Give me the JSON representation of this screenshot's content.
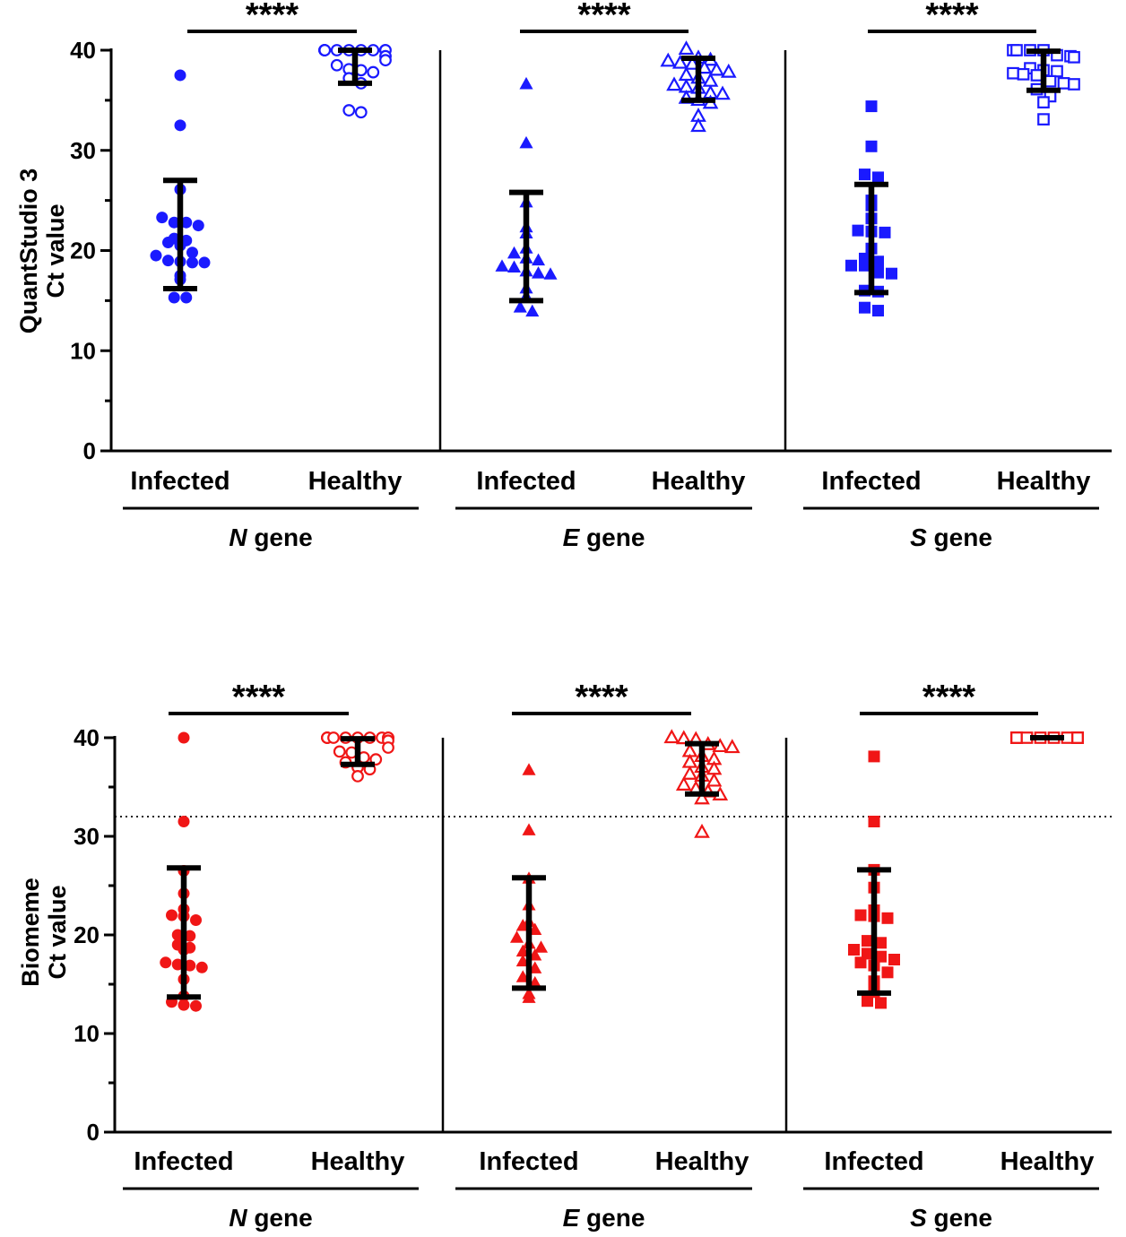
{
  "colors": {
    "panel_top": "#1a1aff",
    "panel_bottom": "#f01616",
    "errorbar": "#000000"
  },
  "chart_data": [
    {
      "type": "scatter",
      "ylabel_lines": [
        "QuantStudio 3",
        "Ct value"
      ],
      "ylim": [
        0,
        40
      ],
      "yticks": [
        "0",
        "10",
        "20",
        "30",
        "40"
      ],
      "threshold": null,
      "color": "#1a1aff",
      "panels": [
        {
          "gene": "N",
          "gene_suffix": " gene",
          "marker": "circle",
          "significance": "****",
          "groups": [
            {
              "label": "Infected",
              "filled": true,
              "mean": 21.5,
              "sd_low": 16.2,
              "sd_high": 27.0,
              "values": [
                37.5,
                32.5,
                26.1,
                23.3,
                22.8,
                22.5,
                22.8,
                21.2,
                21.0,
                20.5,
                20.8,
                19.8,
                19.5,
                19.0,
                18.9,
                18.8,
                18.8,
                17.5,
                17.1,
                15.3,
                15.3
              ]
            },
            {
              "label": "Healthy",
              "filled": false,
              "mean": 38.3,
              "sd_low": 36.7,
              "sd_high": 40.0,
              "values": [
                40,
                40,
                40,
                40,
                40,
                40,
                40,
                40,
                40,
                40,
                39.4,
                39.0,
                38.5,
                38.1,
                38.0,
                37.8,
                37.2,
                36.7,
                34.0,
                33.8
              ]
            }
          ]
        },
        {
          "gene": "E",
          "gene_suffix": " gene",
          "marker": "triangle",
          "significance": "****",
          "groups": [
            {
              "label": "Infected",
              "filled": true,
              "mean": 20.4,
              "sd_low": 15.0,
              "sd_high": 25.8,
              "values": [
                36.6,
                30.7,
                24.8,
                22.3,
                21.7,
                20.2,
                19.7,
                19.2,
                19.0,
                18.4,
                18.3,
                17.9,
                17.7,
                17.6,
                16.2,
                15.4,
                14.3,
                13.9
              ]
            },
            {
              "label": "Healthy",
              "filled": false,
              "mean": 37.0,
              "sd_low": 35.0,
              "sd_high": 39.2,
              "values": [
                40.1,
                39.2,
                39.0,
                38.9,
                38.7,
                38.6,
                38.2,
                38.0,
                37.8,
                37.5,
                37.2,
                36.9,
                36.5,
                36.3,
                36.2,
                35.7,
                35.6,
                35.2,
                35.0,
                34.7,
                33.4,
                32.4
              ]
            }
          ]
        },
        {
          "gene": "S",
          "gene_suffix": " gene",
          "marker": "square",
          "significance": "****",
          "groups": [
            {
              "label": "Infected",
              "filled": true,
              "mean": 21.1,
              "sd_low": 15.8,
              "sd_high": 26.6,
              "values": [
                34.4,
                30.4,
                27.6,
                27.3,
                25.0,
                24.5,
                23.2,
                22.0,
                21.9,
                21.8,
                20.2,
                19.2,
                18.9,
                18.5,
                18.5,
                17.8,
                17.7,
                16.0,
                15.9,
                14.3,
                14.0
              ]
            },
            {
              "label": "Healthy",
              "filled": false,
              "mean": 37.8,
              "sd_low": 36.0,
              "sd_high": 39.9,
              "values": [
                40,
                40,
                40,
                40,
                39.5,
                39.4,
                39.3,
                38.2,
                38.0,
                37.9,
                37.7,
                37.6,
                37.5,
                36.9,
                36.7,
                36.6,
                36.1,
                35.4,
                34.8,
                33.1
              ]
            }
          ]
        }
      ]
    },
    {
      "type": "scatter",
      "ylabel_lines": [
        "Biomeme",
        "Ct value"
      ],
      "ylim": [
        0,
        40
      ],
      "yticks": [
        "0",
        "10",
        "20",
        "30",
        "40"
      ],
      "threshold": 32,
      "color": "#f01616",
      "panels": [
        {
          "gene": "N",
          "gene_suffix": " gene",
          "marker": "circle",
          "significance": "****",
          "groups": [
            {
              "label": "Infected",
              "filled": true,
              "mean": 20.2,
              "sd_low": 13.7,
              "sd_high": 26.8,
              "values": [
                40.0,
                31.5,
                26.5,
                24.2,
                22.6,
                22.0,
                21.9,
                21.5,
                20.0,
                19.9,
                19.0,
                18.7,
                18.5,
                17.2,
                17.0,
                16.9,
                16.7,
                15.5,
                13.8,
                13.2,
                12.9,
                12.8
              ]
            },
            {
              "label": "Healthy",
              "filled": false,
              "mean": 38.6,
              "sd_low": 37.3,
              "sd_high": 39.9,
              "values": [
                40,
                40,
                40,
                40,
                40,
                40,
                40,
                40,
                40,
                40,
                40,
                39.7,
                39.0,
                38.6,
                38.5,
                38.0,
                37.8,
                37.5,
                37.0,
                36.8,
                36.1
              ]
            }
          ]
        },
        {
          "gene": "E",
          "gene_suffix": " gene",
          "marker": "triangle",
          "significance": "****",
          "groups": [
            {
              "label": "Infected",
              "filled": true,
              "mean": 20.1,
              "sd_low": 14.6,
              "sd_high": 25.8,
              "values": [
                36.7,
                30.6,
                25.7,
                23.0,
                21.3,
                20.9,
                20.5,
                19.7,
                19.1,
                18.7,
                18.3,
                17.9,
                17.3,
                16.6,
                15.7,
                15.1,
                14.0,
                13.6
              ]
            },
            {
              "label": "Healthy",
              "filled": false,
              "mean": 36.9,
              "sd_low": 34.3,
              "sd_high": 39.4,
              "values": [
                40.0,
                39.9,
                39.8,
                39.3,
                39.1,
                39.0,
                38.6,
                38.1,
                37.8,
                37.5,
                37.0,
                36.8,
                36.3,
                36.1,
                35.6,
                35.2,
                34.8,
                34.5,
                34.2,
                33.8,
                30.4
              ]
            }
          ]
        },
        {
          "gene": "S",
          "gene_suffix": " gene",
          "marker": "square",
          "significance": "****",
          "groups": [
            {
              "label": "Infected",
              "filled": true,
              "mean": 20.3,
              "sd_low": 14.1,
              "sd_high": 26.6,
              "values": [
                38.1,
                31.5,
                26.6,
                24.8,
                22.5,
                22.0,
                21.9,
                21.7,
                19.4,
                19.2,
                18.5,
                18.1,
                17.8,
                17.5,
                17.2,
                16.9,
                16.2,
                15.3,
                14.2,
                13.3,
                13.1
              ]
            },
            {
              "label": "Healthy",
              "filled": false,
              "mean": 40.0,
              "sd_low": 40.0,
              "sd_high": 40.0,
              "values": [
                40,
                40,
                40,
                40,
                40,
                40,
                40,
                40,
                40,
                40,
                40,
                40,
                40,
                40,
                40,
                40,
                40,
                40,
                40,
                40
              ]
            }
          ]
        }
      ]
    }
  ]
}
